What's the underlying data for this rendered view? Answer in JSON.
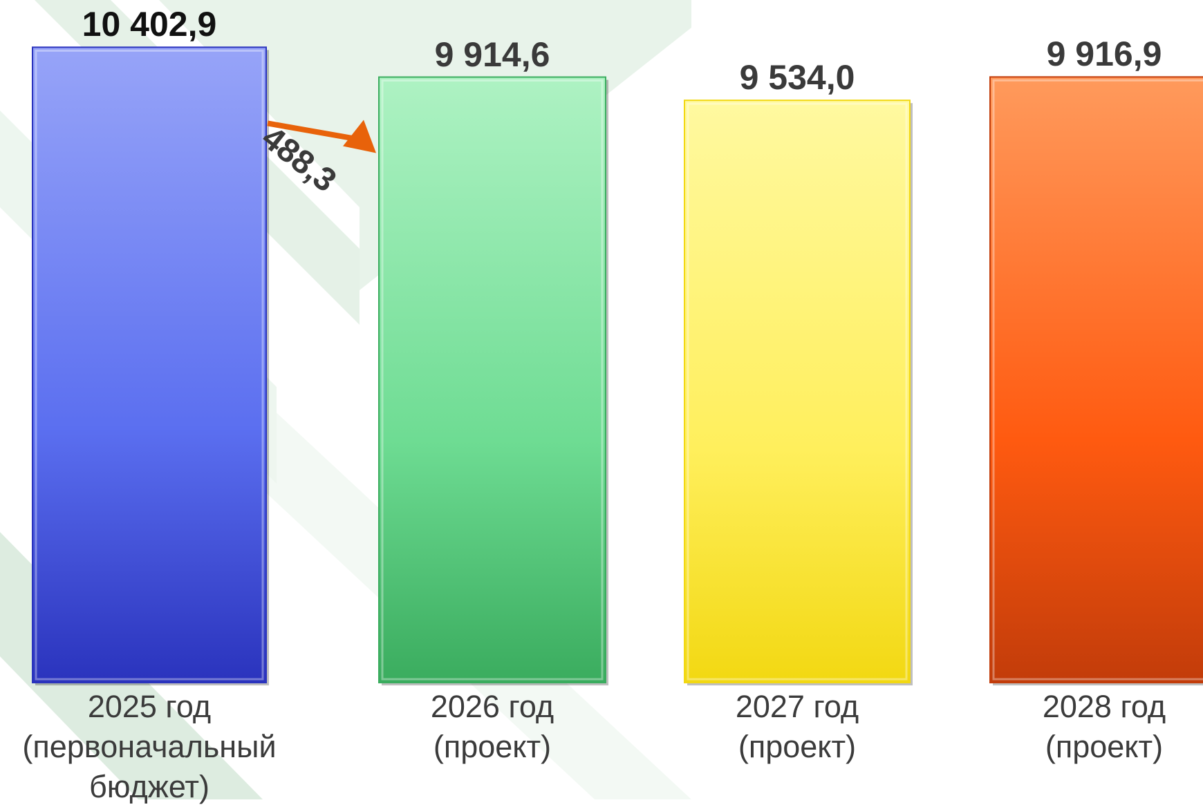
{
  "chart_data": {
    "type": "bar",
    "categories": [
      [
        "2025 год",
        "(первоначальный",
        "бюджет)"
      ],
      [
        "2026 год",
        "(проект)"
      ],
      [
        "2027 год",
        "(проект)"
      ],
      [
        "2028 год",
        "(проект)"
      ]
    ],
    "values": [
      10402.9,
      9914.6,
      9534.0,
      9916.9
    ],
    "value_labels": [
      "10 402,9",
      "9 914,6",
      "9 534,0",
      "9 916,9"
    ],
    "annotation": {
      "text": "488,3",
      "from_category": 0,
      "to_category": 1
    },
    "bar_colors": [
      [
        "#97a4f8",
        "#5b6ff0",
        "#2a33bd"
      ],
      [
        "#aef2c3",
        "#6edc93",
        "#3aac5e"
      ],
      [
        "#fff9a0",
        "#ffef5c",
        "#f2d812"
      ],
      [
        "#ff9a5c",
        "#ff5a10",
        "#c23c0a"
      ]
    ],
    "arrow_color": "#e8620a",
    "grid": false,
    "legend": "none"
  }
}
